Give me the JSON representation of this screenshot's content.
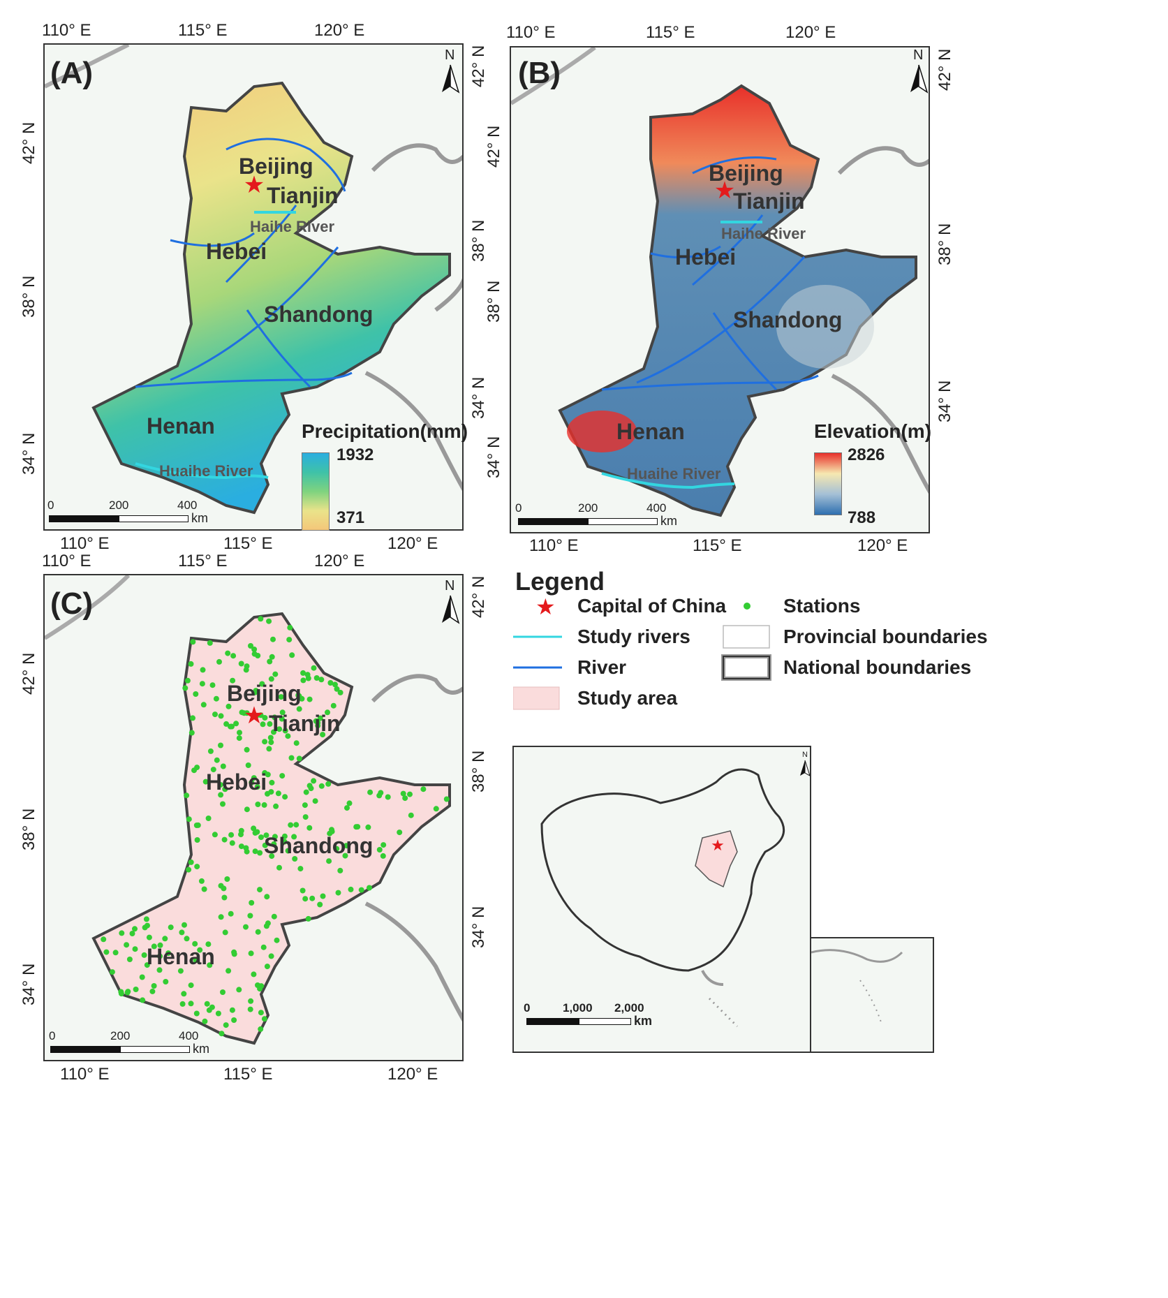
{
  "panels": [
    {
      "label": "(A)",
      "lon_ticks": [
        "110° E",
        "115° E",
        "120° E"
      ],
      "lat_ticks": [
        "42° N",
        "38° N",
        "34° N"
      ],
      "provinces": [
        "Beijing",
        "Tianjin",
        "Hebei",
        "Shandong",
        "Henan"
      ],
      "rivers": [
        "Haihe River",
        "Huaihe River"
      ],
      "colorbar": {
        "title": "Precipitation(mm)",
        "max": "1932",
        "min": "371"
      },
      "scale": {
        "labels": [
          "0",
          "200",
          "400"
        ],
        "unit": "km"
      }
    },
    {
      "label": "(B)",
      "lon_ticks": [
        "110° E",
        "115° E",
        "120° E"
      ],
      "lat_ticks": [
        "42° N",
        "38° N",
        "34° N"
      ],
      "provinces": [
        "Beijing",
        "Tianjin",
        "Hebei",
        "Shandong",
        "Henan"
      ],
      "rivers": [
        "Haihe River",
        "Huaihe River"
      ],
      "colorbar": {
        "title": "Elevation(m)",
        "max": "2826",
        "min": "788"
      },
      "scale": {
        "labels": [
          "0",
          "200",
          "400"
        ],
        "unit": "km"
      }
    },
    {
      "label": "(C)",
      "lon_ticks": [
        "110° E",
        "115° E",
        "120° E"
      ],
      "lat_ticks": [
        "42° N",
        "38° N",
        "34° N"
      ],
      "provinces": [
        "Beijing",
        "Tianjin",
        "Hebei",
        "Shandong",
        "Henan"
      ],
      "scale": {
        "labels": [
          "0",
          "200",
          "400"
        ],
        "unit": "km"
      }
    }
  ],
  "north_label": "N",
  "legend": {
    "title": "Legend",
    "items": [
      "Capital of China",
      "Stations",
      "Study rivers",
      "Provincial boundaries",
      "River",
      "National boundaries",
      "Study area"
    ]
  },
  "inset": {
    "scale_labels": [
      "0",
      "1,000",
      "2,000"
    ],
    "unit": "km"
  },
  "colors": {
    "study_area": "#fadcdc",
    "river": "#1f6fe0",
    "study_river": "#33d6e0",
    "station": "#33cc33",
    "capital": "#e41a1c",
    "national_boundary": "#444444"
  }
}
